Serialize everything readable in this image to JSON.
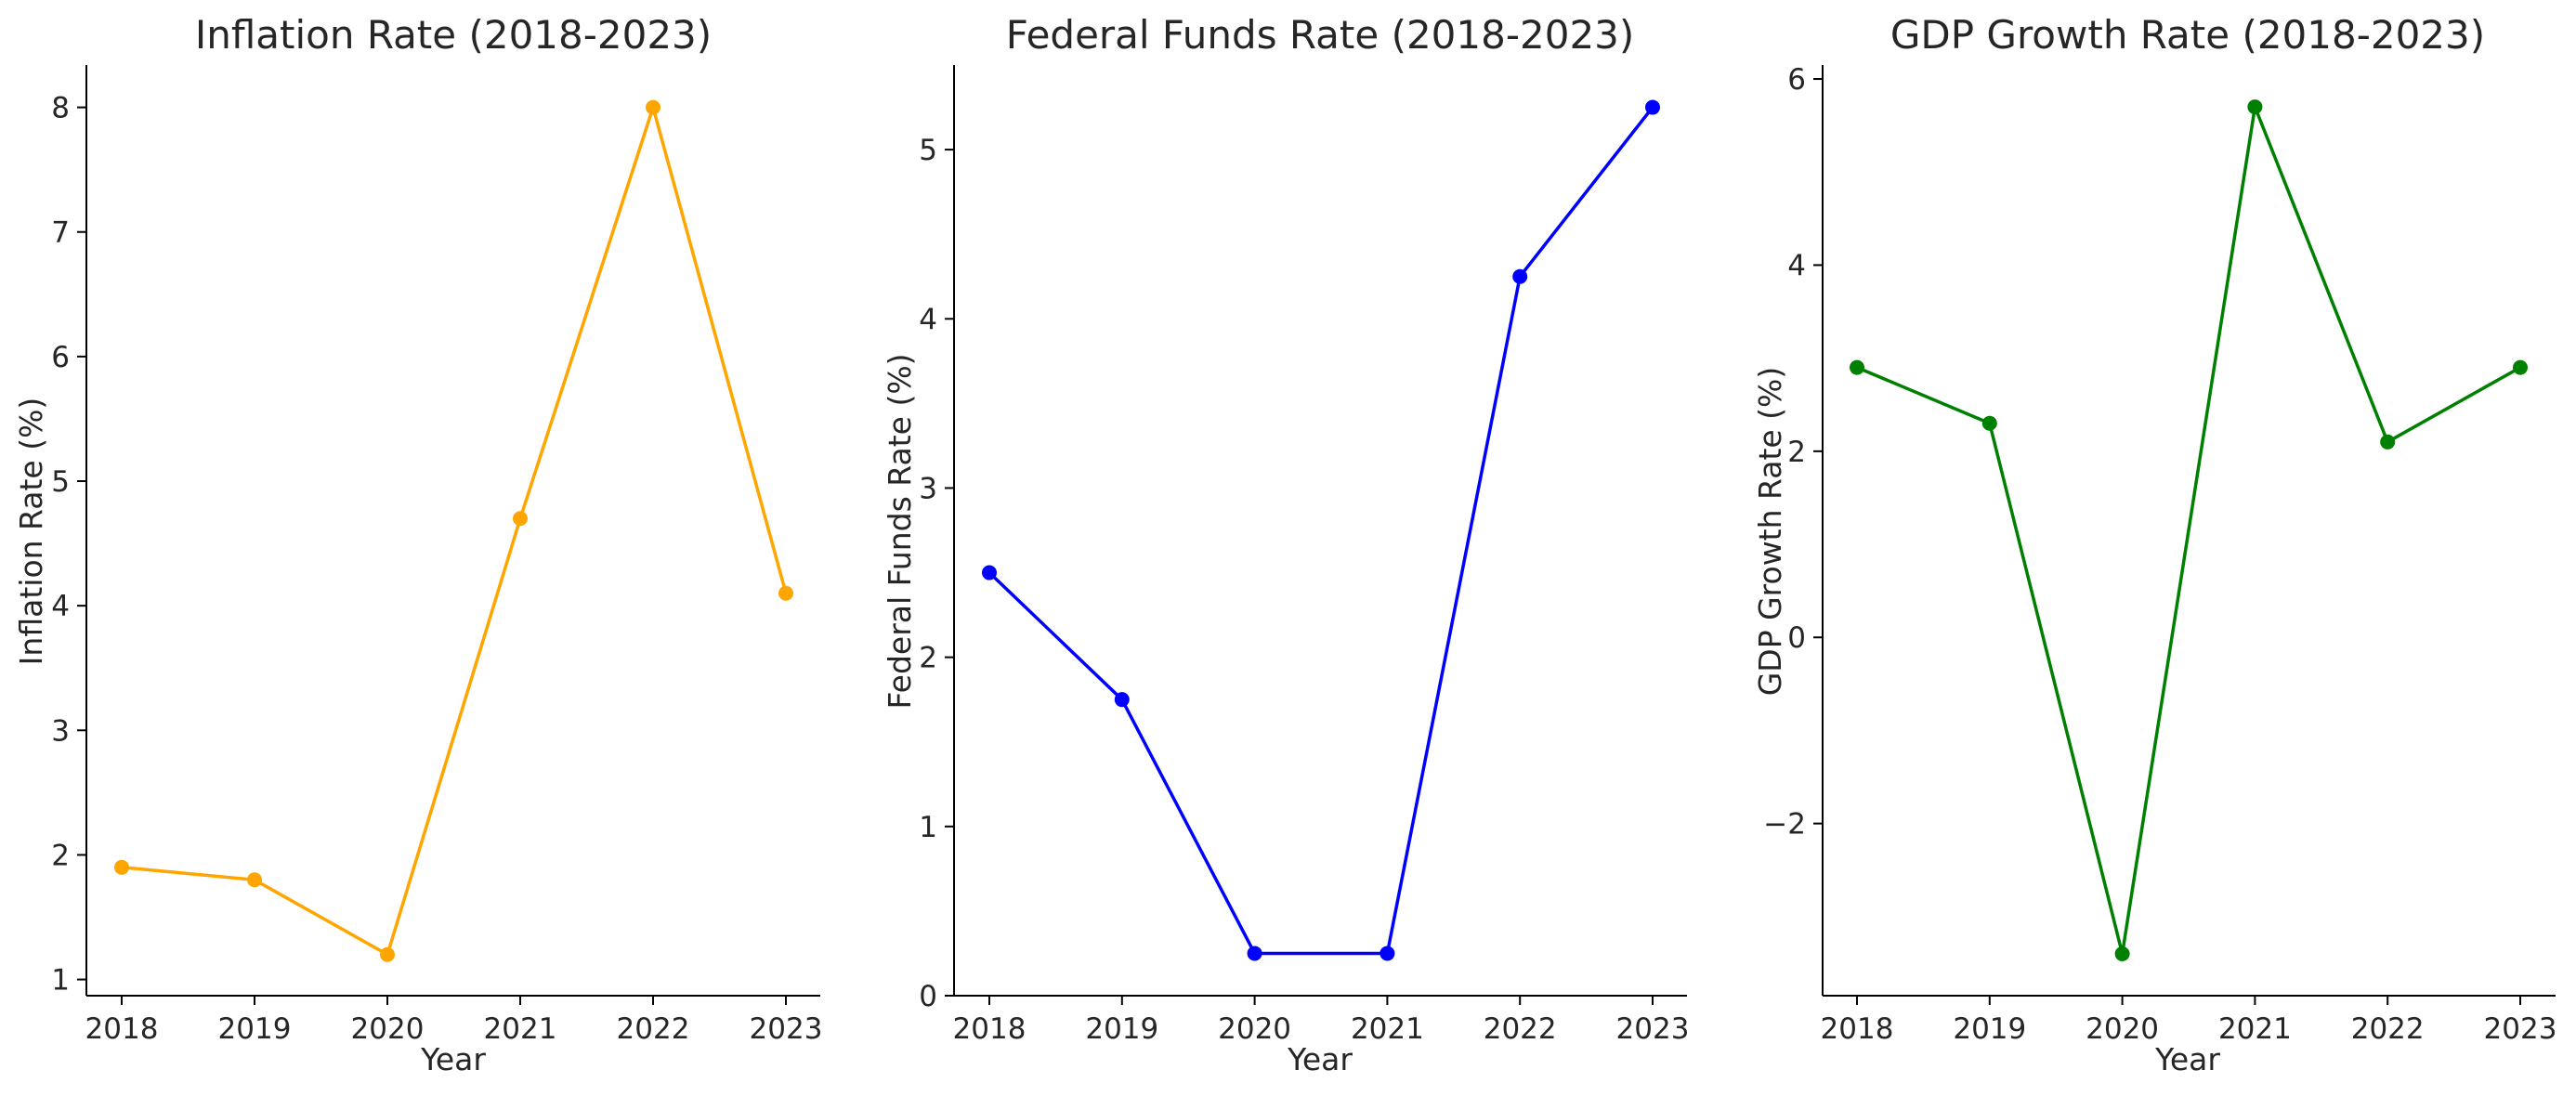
{
  "chart_data": [
    {
      "type": "line",
      "title": "Inflation Rate (2018-2023)",
      "xlabel": "Year",
      "ylabel": "Inflation Rate (%)",
      "x": [
        2018,
        2019,
        2020,
        2021,
        2022,
        2023
      ],
      "x_tick_labels": [
        "2018",
        "2019",
        "2020",
        "2021",
        "2022",
        "2023"
      ],
      "series": [
        {
          "values": [
            1.9,
            1.8,
            1.2,
            4.7,
            8.0,
            4.1
          ],
          "color": "#ffa500"
        }
      ],
      "ylim": [
        0.87,
        8.34
      ],
      "y_ticks": [
        1,
        2,
        3,
        4,
        5,
        6,
        7,
        8
      ],
      "y_tick_labels": [
        "1",
        "2",
        "3",
        "4",
        "5",
        "6",
        "7",
        "8"
      ],
      "grid": false,
      "markers": "circle"
    },
    {
      "type": "line",
      "title": "Federal Funds Rate (2018-2023)",
      "xlabel": "Year",
      "ylabel": "Federal Funds Rate (%)",
      "x": [
        2018,
        2019,
        2020,
        2021,
        2022,
        2023
      ],
      "x_tick_labels": [
        "2018",
        "2019",
        "2020",
        "2021",
        "2022",
        "2023"
      ],
      "series": [
        {
          "values": [
            2.5,
            1.75,
            0.25,
            0.25,
            4.25,
            5.25
          ],
          "color": "#0000ff"
        }
      ],
      "ylim": [
        0,
        5.5
      ],
      "y_ticks": [
        0,
        1,
        2,
        3,
        4,
        5
      ],
      "y_tick_labels": [
        "0",
        "1",
        "2",
        "3",
        "4",
        "5"
      ],
      "grid": false,
      "markers": "circle"
    },
    {
      "type": "line",
      "title": "GDP Growth Rate (2018-2023)",
      "xlabel": "Year",
      "ylabel": "GDP Growth Rate (%)",
      "x": [
        2018,
        2019,
        2020,
        2021,
        2022,
        2023
      ],
      "x_tick_labels": [
        "2018",
        "2019",
        "2020",
        "2021",
        "2022",
        "2023"
      ],
      "series": [
        {
          "values": [
            2.9,
            2.3,
            -3.4,
            5.7,
            2.1,
            2.9
          ],
          "color": "#008000"
        }
      ],
      "ylim": [
        -3.85,
        6.15
      ],
      "y_ticks": [
        -2,
        0,
        2,
        4,
        6
      ],
      "y_tick_labels": [
        "−2",
        "0",
        "2",
        "4",
        "6"
      ],
      "grid": false,
      "markers": "circle"
    }
  ]
}
